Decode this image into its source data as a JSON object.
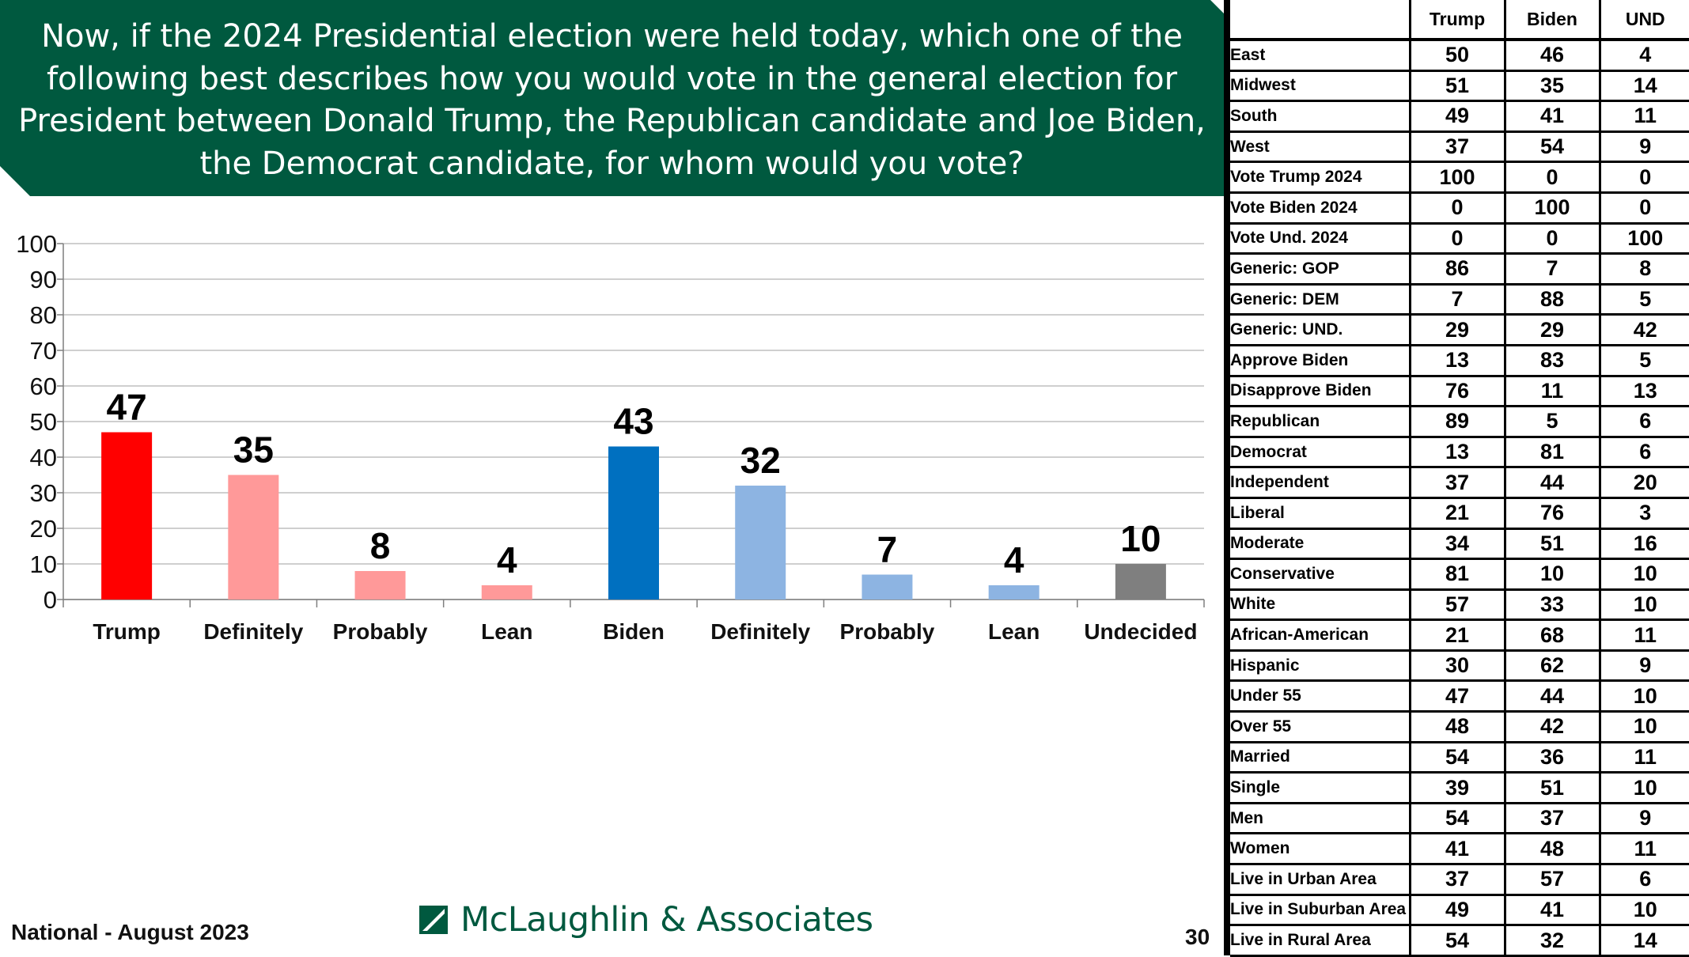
{
  "title": "Now, if the 2024 Presidential election were held today, which one of the following best describes how you would vote in the general election for President between Donald Trump, the Republican candidate and Joe Biden, the Democrat candidate, for whom would you vote?",
  "footer": {
    "left": "National - August 2023",
    "logo_text": "McLaughlin & Associates",
    "page_number": "30"
  },
  "chart_data": {
    "type": "bar",
    "categories": [
      "Trump",
      "Definitely",
      "Probably",
      "Lean",
      "Biden",
      "Definitely",
      "Probably",
      "Lean",
      "Undecided"
    ],
    "values": [
      47,
      35,
      8,
      4,
      43,
      32,
      7,
      4,
      10
    ],
    "colors": [
      "#ff0000",
      "#ff9999",
      "#ff9999",
      "#ff9999",
      "#0070c0",
      "#8db4e2",
      "#8db4e2",
      "#8db4e2",
      "#7f7f7f"
    ],
    "ylim": [
      0,
      100
    ],
    "yticks": [
      0,
      10,
      20,
      30,
      40,
      50,
      60,
      70,
      80,
      90,
      100
    ],
    "grid": true,
    "xlabel": "",
    "ylabel": ""
  },
  "crosstab": {
    "columns": [
      "Trump",
      "Biden",
      "UND"
    ],
    "rows": [
      {
        "label": "East",
        "values": [
          "50",
          "46",
          "4"
        ]
      },
      {
        "label": "Midwest",
        "values": [
          "51",
          "35",
          "14"
        ]
      },
      {
        "label": "South",
        "values": [
          "49",
          "41",
          "11"
        ]
      },
      {
        "label": "West",
        "values": [
          "37",
          "54",
          "9"
        ]
      },
      {
        "label": "Vote Trump 2024",
        "values": [
          "100",
          "0",
          "0"
        ]
      },
      {
        "label": "Vote Biden 2024",
        "values": [
          "0",
          "100",
          "0"
        ]
      },
      {
        "label": "Vote Und. 2024",
        "values": [
          "0",
          "0",
          "100"
        ]
      },
      {
        "label": "Generic: GOP",
        "values": [
          "86",
          "7",
          "8"
        ]
      },
      {
        "label": "Generic: DEM",
        "values": [
          "7",
          "88",
          "5"
        ]
      },
      {
        "label": "Generic: UND.",
        "values": [
          "29",
          "29",
          "42"
        ]
      },
      {
        "label": "Approve Biden",
        "values": [
          "13",
          "83",
          "5"
        ]
      },
      {
        "label": "Disapprove Biden",
        "values": [
          "76",
          "11",
          "13"
        ]
      },
      {
        "label": "Republican",
        "values": [
          "89",
          "5",
          "6"
        ]
      },
      {
        "label": "Democrat",
        "values": [
          "13",
          "81",
          "6"
        ]
      },
      {
        "label": "Independent",
        "values": [
          "37",
          "44",
          "20"
        ]
      },
      {
        "label": "Liberal",
        "values": [
          "21",
          "76",
          "3"
        ]
      },
      {
        "label": "Moderate",
        "values": [
          "34",
          "51",
          "16"
        ]
      },
      {
        "label": "Conservative",
        "values": [
          "81",
          "10",
          "10"
        ]
      },
      {
        "label": "White",
        "values": [
          "57",
          "33",
          "10"
        ]
      },
      {
        "label": "African-American",
        "values": [
          "21",
          "68",
          "11"
        ]
      },
      {
        "label": "Hispanic",
        "values": [
          "30",
          "62",
          "9"
        ]
      },
      {
        "label": "Under 55",
        "values": [
          "47",
          "44",
          "10"
        ]
      },
      {
        "label": "Over 55",
        "values": [
          "48",
          "42",
          "10"
        ]
      },
      {
        "label": "Married",
        "values": [
          "54",
          "36",
          "11"
        ]
      },
      {
        "label": "Single",
        "values": [
          "39",
          "51",
          "10"
        ]
      },
      {
        "label": "Men",
        "values": [
          "54",
          "37",
          "9"
        ]
      },
      {
        "label": "Women",
        "values": [
          "41",
          "48",
          "11"
        ]
      },
      {
        "label": "Live in Urban Area",
        "values": [
          "37",
          "57",
          "6"
        ]
      },
      {
        "label": "Live in Suburban Area",
        "values": [
          "49",
          "41",
          "10"
        ]
      },
      {
        "label": "Live in Rural Area",
        "values": [
          "54",
          "32",
          "14"
        ]
      }
    ]
  }
}
